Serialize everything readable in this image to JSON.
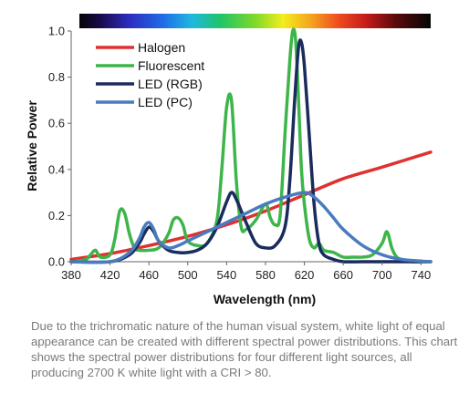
{
  "chart_data": {
    "type": "line",
    "title": "",
    "xlabel": "Wavelength (nm)",
    "ylabel": "Relative Power",
    "xlim": [
      380,
      750
    ],
    "ylim": [
      0,
      1.0
    ],
    "xticks": [
      380,
      420,
      460,
      500,
      540,
      580,
      620,
      660,
      700,
      740
    ],
    "yticks": [
      0.0,
      0.2,
      0.4,
      0.6,
      0.8,
      1.0
    ],
    "ytick_labels": [
      "0.0",
      "0.2",
      "0.4",
      "0.6",
      "0.8",
      "1.0"
    ],
    "grid": false,
    "legend_position": "top-left",
    "spectrum_bar": true,
    "series": [
      {
        "name": "Halogen",
        "color": "#e03030",
        "x": [
          380,
          420,
          460,
          500,
          540,
          580,
          620,
          660,
          700,
          750
        ],
        "y": [
          0.01,
          0.035,
          0.07,
          0.11,
          0.16,
          0.22,
          0.29,
          0.36,
          0.41,
          0.475
        ]
      },
      {
        "name": "Fluorescent",
        "color": "#3db54a",
        "x": [
          380,
          395,
          400,
          405,
          410,
          420,
          425,
          430,
          435,
          440,
          445,
          450,
          460,
          470,
          480,
          485,
          490,
          495,
          500,
          510,
          520,
          530,
          535,
          540,
          545,
          550,
          555,
          560,
          570,
          580,
          585,
          590,
          595,
          600,
          605,
          608,
          611,
          614,
          617,
          620,
          625,
          630,
          635,
          640,
          650,
          660,
          670,
          680,
          690,
          700,
          705,
          710,
          715,
          720,
          730,
          740,
          750
        ],
        "y": [
          0.0,
          0.01,
          0.03,
          0.05,
          0.02,
          0.03,
          0.1,
          0.22,
          0.21,
          0.12,
          0.06,
          0.05,
          0.05,
          0.06,
          0.12,
          0.18,
          0.19,
          0.16,
          0.09,
          0.07,
          0.08,
          0.18,
          0.4,
          0.67,
          0.7,
          0.35,
          0.15,
          0.14,
          0.18,
          0.25,
          0.19,
          0.16,
          0.2,
          0.55,
          0.87,
          1.0,
          0.96,
          0.7,
          0.4,
          0.25,
          0.1,
          0.06,
          0.08,
          0.05,
          0.04,
          0.02,
          0.02,
          0.02,
          0.03,
          0.08,
          0.13,
          0.06,
          0.02,
          0.01,
          0.0,
          0.0,
          0.0
        ]
      },
      {
        "name": "LED (RGB)",
        "color": "#1a2b5e",
        "x": [
          380,
          420,
          440,
          450,
          455,
          460,
          465,
          470,
          480,
          490,
          500,
          510,
          520,
          530,
          540,
          545,
          550,
          560,
          570,
          580,
          590,
          600,
          605,
          610,
          614,
          617,
          620,
          625,
          630,
          635,
          640,
          650,
          660,
          680,
          700,
          750
        ],
        "y": [
          0.0,
          0.0,
          0.03,
          0.08,
          0.12,
          0.15,
          0.13,
          0.09,
          0.05,
          0.04,
          0.04,
          0.05,
          0.08,
          0.15,
          0.26,
          0.3,
          0.27,
          0.17,
          0.08,
          0.06,
          0.07,
          0.15,
          0.35,
          0.7,
          0.93,
          0.95,
          0.85,
          0.55,
          0.25,
          0.08,
          0.03,
          0.01,
          0.0,
          0.0,
          0.0,
          0.0
        ]
      },
      {
        "name": "LED (PC)",
        "color": "#4a7bbf",
        "x": [
          380,
          420,
          440,
          450,
          455,
          460,
          465,
          470,
          480,
          490,
          500,
          520,
          540,
          560,
          580,
          600,
          620,
          630,
          640,
          650,
          660,
          680,
          700,
          720,
          750
        ],
        "y": [
          0.0,
          0.0,
          0.04,
          0.1,
          0.15,
          0.17,
          0.14,
          0.09,
          0.06,
          0.07,
          0.09,
          0.13,
          0.17,
          0.21,
          0.25,
          0.28,
          0.3,
          0.28,
          0.24,
          0.19,
          0.14,
          0.07,
          0.03,
          0.01,
          0.0
        ]
      }
    ]
  },
  "caption": "Due to the trichromatic nature of the human visual system, white light of equal appearance can be created with different spectral power distributions.  This chart shows the spectral power distributions for four different light sources, all producing 2700 K white light with a CRI > 80."
}
